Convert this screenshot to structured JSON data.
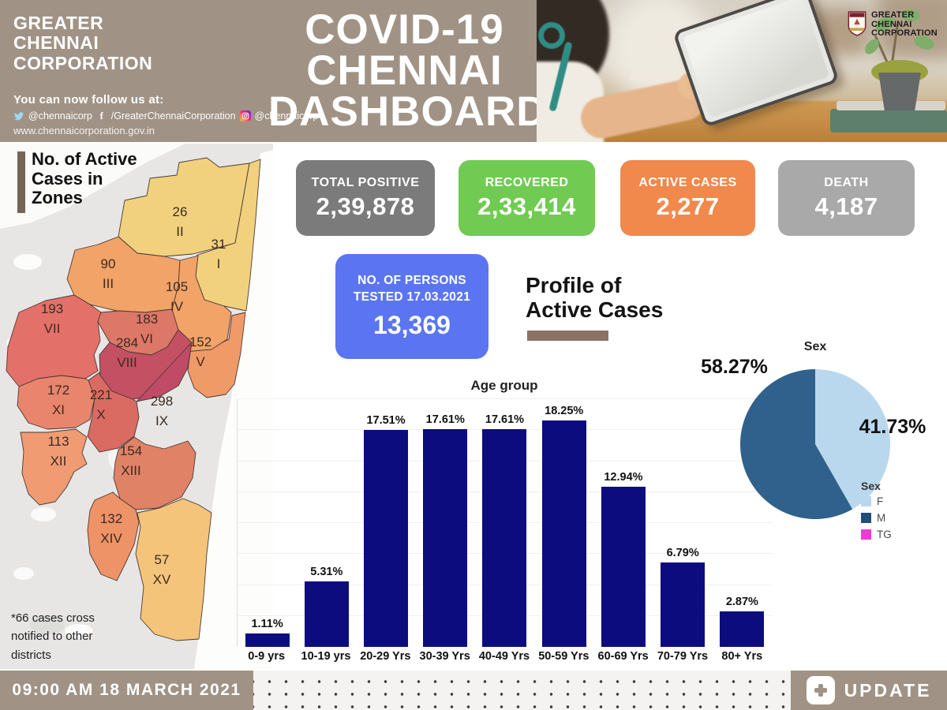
{
  "header": {
    "org_lines": [
      "GREATER",
      "CHENNAI",
      "CORPORATION"
    ],
    "follow_text": "You can now follow us at:",
    "twitter_handle": "@chennaicorp",
    "facebook_handle": "/GreaterChennaiCorporation",
    "instagram_handle": "@chennaicorp",
    "website": "www.chennaicorporation.gov.in",
    "title_lines": [
      "COVID-19",
      "CHENNAI",
      "DASHBOARD"
    ],
    "logo_lines": [
      "GREATER",
      "CHENNAI",
      "CORPORATION"
    ]
  },
  "stats": [
    {
      "label": "TOTAL POSITIVE",
      "value": "2,39,878",
      "color": "#7b7b7b"
    },
    {
      "label": "RECOVERED",
      "value": "2,33,414",
      "color": "#71cb52"
    },
    {
      "label": "ACTIVE CASES",
      "value": "2,277",
      "color": "#f0894b"
    },
    {
      "label": "DEATH",
      "value": "4,187",
      "color": "#a9a9a9"
    }
  ],
  "tested": {
    "label_line1": "NO. OF PERSONS",
    "label_line2": "TESTED 17.03.2021",
    "value": "13,369"
  },
  "profile": {
    "line1": "Profile of",
    "line2": "Active Cases"
  },
  "map": {
    "heading_lines": [
      "No. of Active",
      "Cases in",
      "Zones"
    ],
    "footnote_lines": [
      "*66 cases cross",
      "notified to other",
      "districts"
    ],
    "zones": [
      {
        "zone": "I",
        "value": "31",
        "color": "#f1d17e"
      },
      {
        "zone": "II",
        "value": "26",
        "color": "#f1d17e"
      },
      {
        "zone": "III",
        "value": "90",
        "color": "#f1a368"
      },
      {
        "zone": "IV",
        "value": "105",
        "color": "#f1a368"
      },
      {
        "zone": "V",
        "value": "152",
        "color": "#f09a68"
      },
      {
        "zone": "VI",
        "value": "183",
        "color": "#dd7767"
      },
      {
        "zone": "VII",
        "value": "193",
        "color": "#e37169"
      },
      {
        "zone": "VIII",
        "value": "284",
        "color": "#c35063"
      },
      {
        "zone": "IX",
        "value": "298",
        "color": "#c04b66"
      },
      {
        "zone": "X",
        "value": "221",
        "color": "#d96b63"
      },
      {
        "zone": "XI",
        "value": "172",
        "color": "#e8856c"
      },
      {
        "zone": "XII",
        "value": "113",
        "color": "#f09b72"
      },
      {
        "zone": "XIII",
        "value": "154",
        "color": "#e08266"
      },
      {
        "zone": "XIV",
        "value": "132",
        "color": "#ee9367"
      },
      {
        "zone": "XV",
        "value": "57",
        "color": "#f5c47b"
      }
    ]
  },
  "chart_data": [
    {
      "type": "bar",
      "title": "Age group",
      "categories": [
        "0-9 yrs",
        "10-19 yrs",
        "20-29 Yrs",
        "30-39 Yrs",
        "40-49 Yrs",
        "50-59 Yrs",
        "60-69 Yrs",
        "70-79 Yrs",
        "80+ Yrs"
      ],
      "values": [
        1.11,
        5.31,
        17.51,
        17.61,
        17.61,
        18.25,
        12.94,
        6.79,
        2.87
      ],
      "labels": [
        "1.11%",
        "5.31%",
        "17.51%",
        "17.61%",
        "17.61%",
        "18.25%",
        "12.94%",
        "6.79%",
        "2.87%"
      ],
      "xlabel": "",
      "ylabel": "",
      "ylim": [
        0,
        20
      ],
      "grid_step": 2.5,
      "grid": true,
      "bar_color": "#0c0c7e",
      "legend_position": "none"
    },
    {
      "type": "pie",
      "title": "Sex",
      "legend_title": "Sex",
      "legend_position": "bottom-right",
      "slices": [
        {
          "label": "F",
          "value": 41.73,
          "display": "41.73%",
          "color": "#b9d8ee",
          "swatch": "#b9d8ee"
        },
        {
          "label": "M",
          "value": 58.27,
          "display": "58.27%",
          "color": "#2f618c",
          "swatch": "#1f4e79"
        },
        {
          "label": "TG",
          "value": 0,
          "display": "",
          "color": "#f23ad7",
          "swatch": "#f23ad7"
        }
      ]
    }
  ],
  "footer": {
    "timestamp": "09:00 AM 18 MARCH 2021",
    "update_label": "UPDATE"
  }
}
